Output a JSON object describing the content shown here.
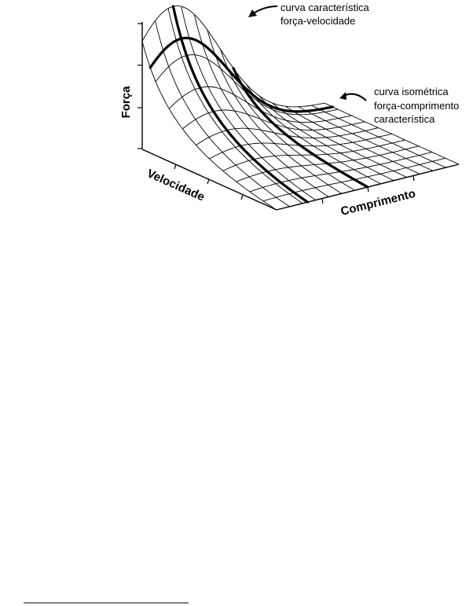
{
  "axes": {
    "force": "Força",
    "velocity": "Velocidade",
    "length": "Comprimento"
  },
  "annotations": {
    "fv_curve": {
      "line1": "curva característica",
      "line2": "força-velocidade"
    },
    "fl_curve": {
      "line1": "curva isométrica",
      "line2": "força-comprimento",
      "line3": "característica"
    }
  }
}
